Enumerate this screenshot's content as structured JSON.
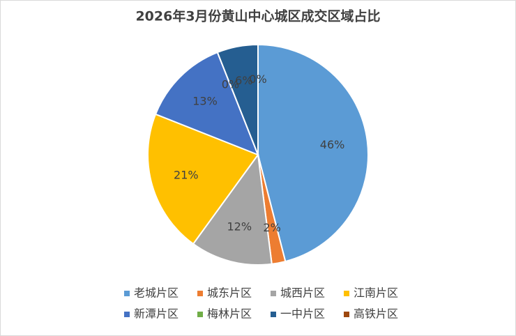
{
  "chart_data": {
    "type": "pie",
    "title": "2026年3月份黄山中心城区成交区域占比",
    "categories": [
      "老城片区",
      "城东片区",
      "城西片区",
      "江南片区",
      "新潭片区",
      "梅林片区",
      "一中片区",
      "高铁片区"
    ],
    "values": [
      46,
      2,
      12,
      21,
      13,
      0,
      6,
      0
    ],
    "value_labels": [
      "46%",
      "2%",
      "12%",
      "21%",
      "13%",
      "0%",
      "6%",
      "0%"
    ],
    "colors": [
      "#5b9bd5",
      "#ed7d31",
      "#a5a5a5",
      "#ffc000",
      "#4472c4",
      "#70ad47",
      "#255e91",
      "#9e480e"
    ],
    "legend": "bottom"
  }
}
